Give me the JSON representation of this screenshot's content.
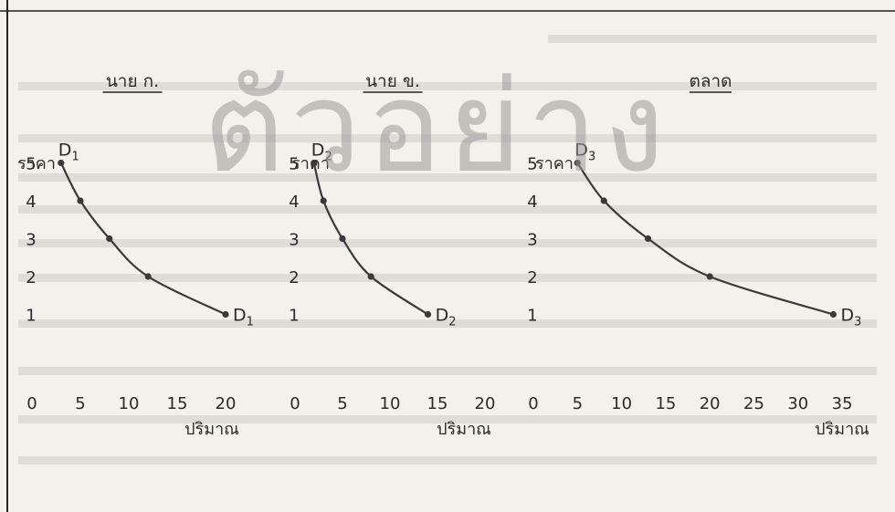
{
  "watermark": "ตัวอย่าง",
  "chart_data": [
    {
      "type": "line",
      "title": "นาย ก.",
      "ylabel": "ราคา",
      "xlabel": "ปริมาณ",
      "xticks": [
        "0",
        "5",
        "10",
        "15",
        "20"
      ],
      "yticks": [
        "1",
        "2",
        "3",
        "4",
        "5"
      ],
      "xlim": [
        0,
        20
      ],
      "ylim": [
        0,
        5
      ],
      "curve_label": "D",
      "curve_subscript": "1",
      "series": [
        {
          "x": [
            3,
            5,
            8,
            12,
            20
          ],
          "y": [
            5,
            4,
            3,
            2,
            1
          ]
        }
      ]
    },
    {
      "type": "line",
      "title": "นาย ข.",
      "ylabel": "ราคา",
      "xlabel": "ปริมาณ",
      "xticks": [
        "0",
        "5",
        "10",
        "15",
        "20"
      ],
      "yticks": [
        "1",
        "2",
        "3",
        "4",
        "5"
      ],
      "xlim": [
        0,
        20
      ],
      "ylim": [
        0,
        5
      ],
      "curve_label": "D",
      "curve_subscript": "2",
      "series": [
        {
          "x": [
            2,
            3,
            5,
            8,
            14
          ],
          "y": [
            5,
            4,
            3,
            2,
            1
          ]
        }
      ]
    },
    {
      "type": "line",
      "title": "ตลาด",
      "ylabel": "ราคา",
      "xlabel": "ปริมาณ",
      "xticks": [
        "0",
        "5",
        "10",
        "15",
        "20",
        "25",
        "30",
        "35"
      ],
      "yticks": [
        "1",
        "2",
        "3",
        "4",
        "5"
      ],
      "xlim": [
        0,
        35
      ],
      "ylim": [
        0,
        5
      ],
      "curve_label": "D",
      "curve_subscript": "3",
      "series": [
        {
          "x": [
            5,
            8,
            13,
            20,
            34
          ],
          "y": [
            5,
            4,
            3,
            2,
            1
          ]
        }
      ]
    }
  ]
}
